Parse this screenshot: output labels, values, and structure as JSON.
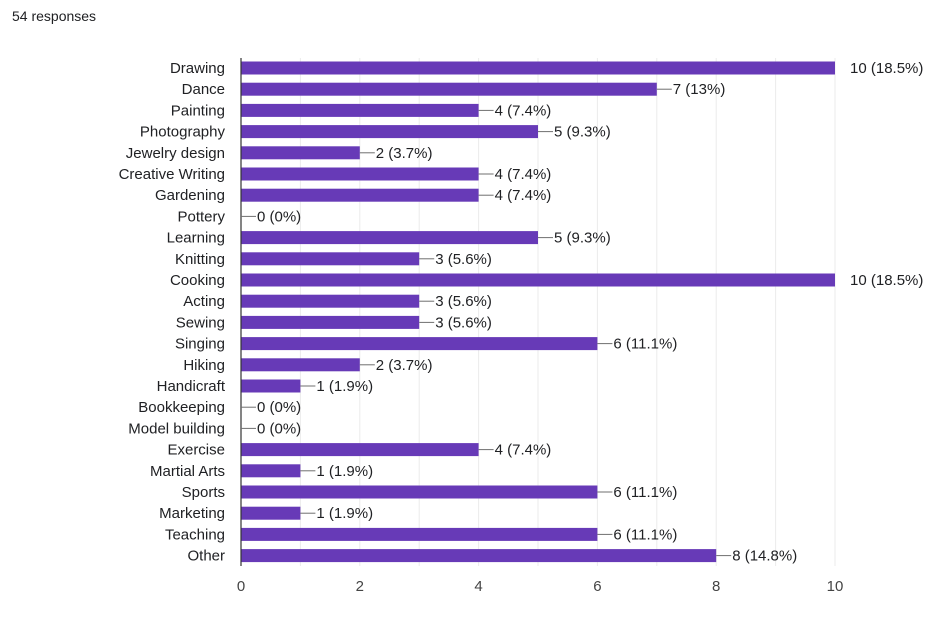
{
  "header": {
    "responses_text": "54 responses"
  },
  "colors": {
    "bar": "#673ab7",
    "grid": "#ebebeb",
    "axis": "#333333",
    "leader": "#6f6f6f"
  },
  "chart_data": {
    "type": "bar",
    "orientation": "horizontal",
    "categories": [
      "Drawing",
      "Dance",
      "Painting",
      "Photography",
      "Jewelry design",
      "Creative Writing",
      "Gardening",
      "Pottery",
      "Learning",
      "Knitting",
      "Cooking",
      "Acting",
      "Sewing",
      "Singing",
      "Hiking",
      "Handicraft",
      "Bookkeeping",
      "Model building",
      "Exercise",
      "Martial Arts",
      "Sports",
      "Marketing",
      "Teaching",
      "Other"
    ],
    "values": [
      10,
      7,
      4,
      5,
      2,
      4,
      4,
      0,
      5,
      3,
      10,
      3,
      3,
      6,
      2,
      1,
      0,
      0,
      4,
      1,
      6,
      1,
      6,
      8
    ],
    "value_labels": [
      "10 (18.5%)",
      "7 (13%)",
      "4 (7.4%)",
      "5 (9.3%)",
      "2 (3.7%)",
      "4 (7.4%)",
      "4 (7.4%)",
      "0 (0%)",
      "5 (9.3%)",
      "3 (5.6%)",
      "10 (18.5%)",
      "3 (5.6%)",
      "3 (5.6%)",
      "6 (11.1%)",
      "2 (3.7%)",
      "1 (1.9%)",
      "0 (0%)",
      "0 (0%)",
      "4 (7.4%)",
      "1 (1.9%)",
      "6 (11.1%)",
      "1 (1.9%)",
      "6 (11.1%)",
      "8 (14.8%)"
    ],
    "xlim": [
      0,
      10
    ],
    "xticks": [
      0,
      2,
      4,
      6,
      8,
      10
    ],
    "grid": true,
    "title": "",
    "xlabel": "",
    "ylabel": ""
  }
}
